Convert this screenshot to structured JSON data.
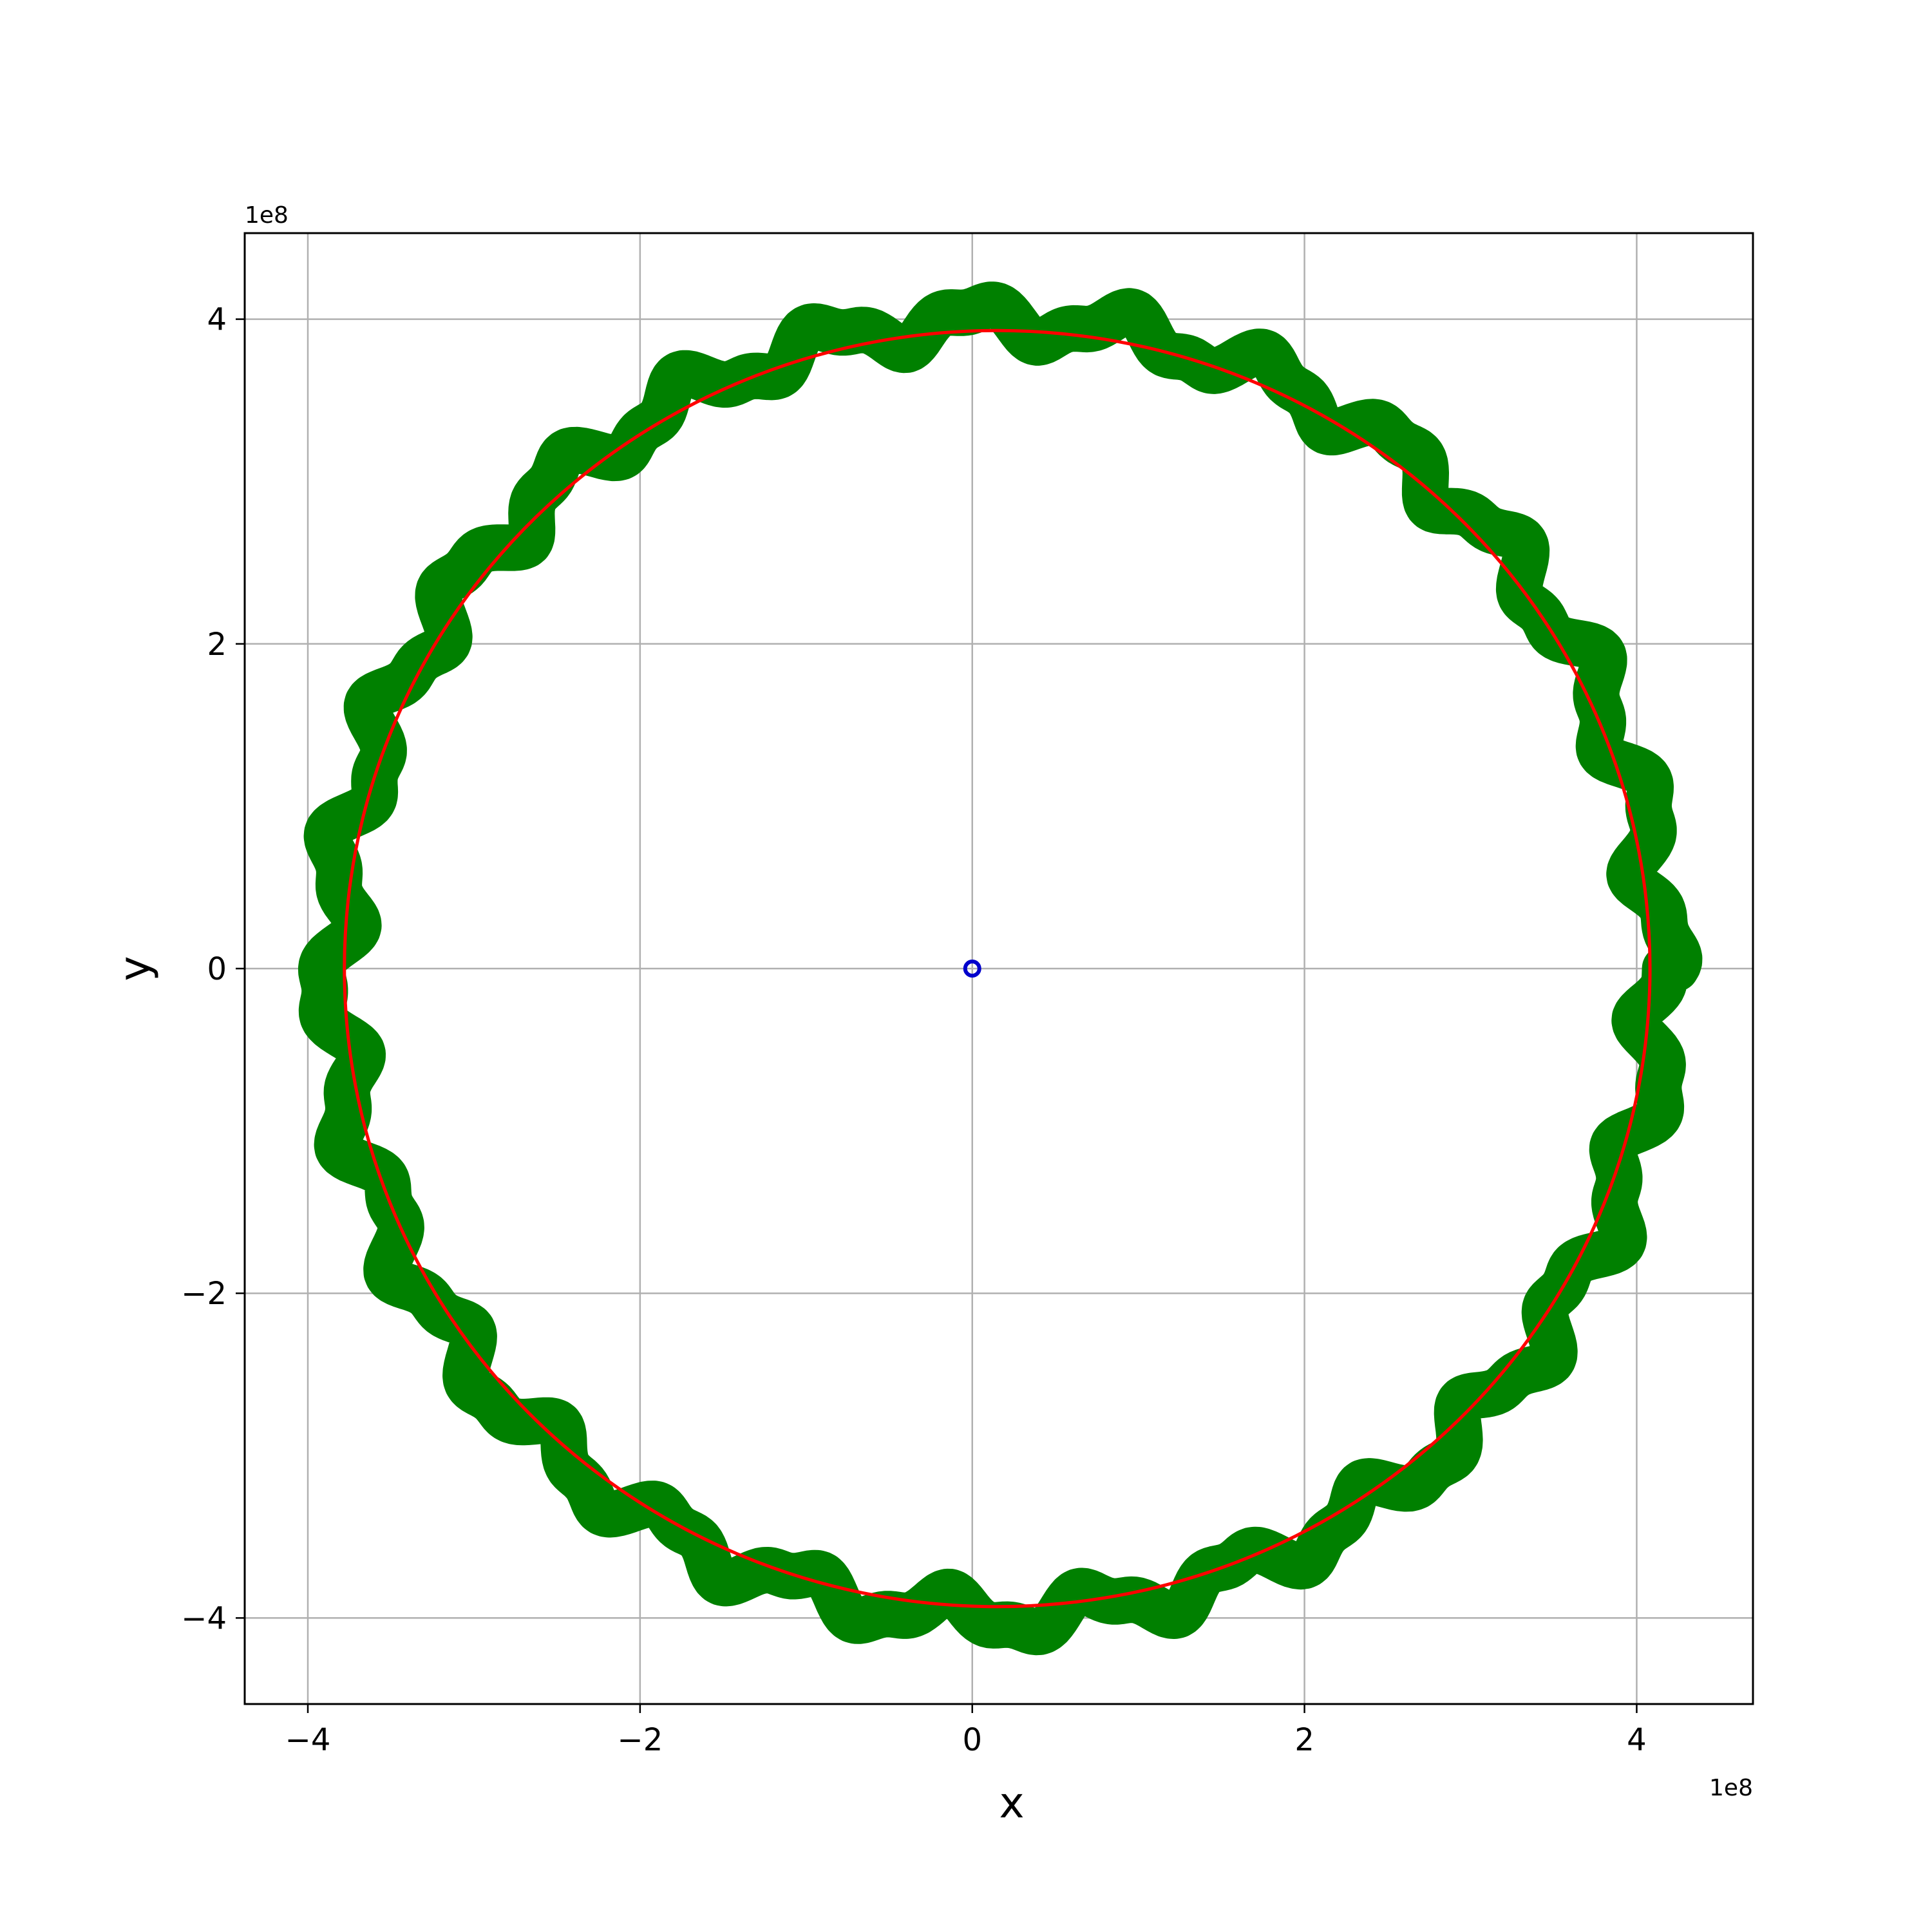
{
  "chart_data": {
    "type": "line",
    "title": "",
    "xlabel": "x",
    "ylabel": "y",
    "x_offset_label": "1e8",
    "y_offset_label": "1e8",
    "xlim": [
      -4.38,
      4.7
    ],
    "ylim": [
      -4.53,
      4.53
    ],
    "xticks": [
      -4,
      -2,
      0,
      2,
      4
    ],
    "yticks": [
      -4,
      -2,
      0,
      2,
      4
    ],
    "xtick_labels": [
      "−4",
      "−2",
      "0",
      "2",
      "4"
    ],
    "ytick_labels": [
      "−4",
      "−2",
      "0",
      "2",
      "4"
    ],
    "grid": true,
    "legend": "none",
    "series": [
      {
        "style": "wobbly-orbit",
        "color": "#008000",
        "center": [
          0.15,
          0.0
        ],
        "radius": 3.99,
        "wobble_amplitude": 0.1,
        "wobble_cycles": 28,
        "line_width_data": 0.28
      },
      {
        "style": "smooth-orbit",
        "color": "#ff0000",
        "center": [
          0.15,
          0.0
        ],
        "radius": 3.93
      },
      {
        "style": "marker",
        "color": "#0000cc",
        "point": [
          0.0,
          0.0
        ]
      }
    ]
  }
}
